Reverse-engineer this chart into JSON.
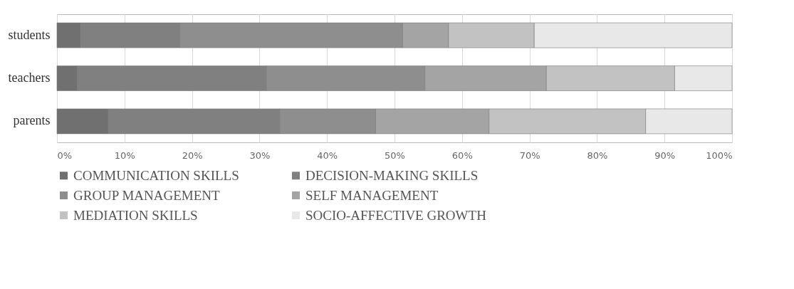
{
  "chart_data": {
    "type": "bar",
    "orientation": "horizontal",
    "stacked": true,
    "categories": [
      "students",
      "teachers",
      "parents"
    ],
    "series": [
      {
        "name": "COMMUNICATION SKILLS",
        "color": "#707070",
        "values": [
          3.5,
          3,
          7.6
        ]
      },
      {
        "name": "DECISION-MAKING SKILLS",
        "color": "#808080",
        "values": [
          14.7,
          28,
          25.4
        ]
      },
      {
        "name": "GROUP MANAGEMENT",
        "color": "#8e8e8e",
        "values": [
          33,
          23.5,
          14.2
        ]
      },
      {
        "name": "SELF MANAGEMENT",
        "color": "#a4a4a4",
        "values": [
          6.8,
          18,
          16.8
        ]
      },
      {
        "name": "MEDIATION SKILLS",
        "color": "#c2c2c2",
        "values": [
          12.7,
          19,
          23.2
        ]
      },
      {
        "name": "SOCIO-AFFECTIVE GROWTH",
        "color": "#e8e8e8",
        "values": [
          29.3,
          8.5,
          12.8
        ]
      }
    ],
    "xlim": [
      0,
      100
    ],
    "xticks": [
      {
        "value": 0,
        "label": "0%"
      },
      {
        "value": 10,
        "label": "10%"
      },
      {
        "value": 20,
        "label": "20%"
      },
      {
        "value": 30,
        "label": "30%"
      },
      {
        "value": 40,
        "label": "40%"
      },
      {
        "value": 50,
        "label": "50%"
      },
      {
        "value": 60,
        "label": "60%"
      },
      {
        "value": 70,
        "label": "70%"
      },
      {
        "value": 80,
        "label": "80%"
      },
      {
        "value": 90,
        "label": "90%"
      },
      {
        "value": 100,
        "label": "100%"
      }
    ],
    "grid": "x",
    "legend": "bottom"
  }
}
